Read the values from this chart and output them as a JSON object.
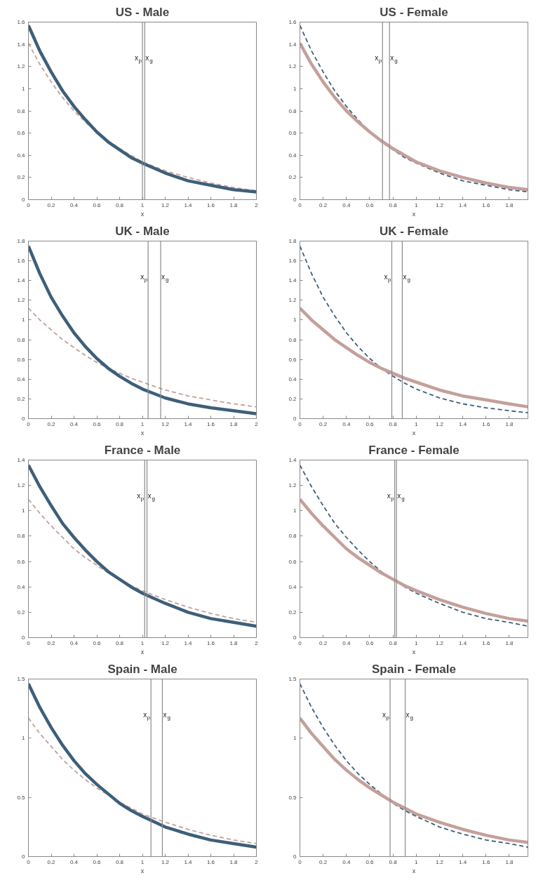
{
  "chart_data": [
    {
      "type": "line",
      "title": "US - Male",
      "xlabel": "x",
      "x": [
        0,
        0.1,
        0.2,
        0.3,
        0.4,
        0.5,
        0.6,
        0.7,
        0.8,
        0.9,
        1.0,
        1.2,
        1.4,
        1.6,
        1.8,
        2.0
      ],
      "xlim": [
        0,
        2
      ],
      "xticks": [
        0,
        0.2,
        0.4,
        0.6,
        0.8,
        1,
        1.2,
        1.4,
        1.6,
        1.8,
        2
      ],
      "ylim": [
        0,
        1.6
      ],
      "yticks": [
        0,
        0.2,
        0.4,
        0.6,
        0.8,
        1,
        1.2,
        1.4,
        1.6
      ],
      "grid": false,
      "series": [
        {
          "color": "#3d5f7a",
          "line_style": "solid",
          "values": [
            1.57,
            1.34,
            1.15,
            0.98,
            0.84,
            0.72,
            0.61,
            0.52,
            0.45,
            0.38,
            0.33,
            0.24,
            0.17,
            0.13,
            0.09,
            0.07
          ]
        },
        {
          "color": "#c4a09a",
          "line_style": "dashed",
          "values": [
            1.41,
            1.22,
            1.06,
            0.92,
            0.8,
            0.7,
            0.61,
            0.53,
            0.46,
            0.4,
            0.34,
            0.26,
            0.2,
            0.15,
            0.11,
            0.08
          ]
        }
      ],
      "ref_lines": [
        {
          "axis": "x",
          "value": 1.0,
          "label": "x$_{p}$"
        },
        {
          "axis": "x",
          "value": 1.02,
          "label": "x$_{g}$"
        }
      ]
    },
    {
      "type": "line",
      "title": "US - Female",
      "xlabel": "x",
      "x": [
        0,
        0.1,
        0.2,
        0.3,
        0.4,
        0.5,
        0.6,
        0.7,
        0.8,
        0.9,
        1.0,
        1.2,
        1.4,
        1.6,
        1.8,
        1.96
      ],
      "xlim": [
        0,
        1.96
      ],
      "xticks": [
        0,
        0.2,
        0.4,
        0.6,
        0.8,
        1,
        1.2,
        1.4,
        1.6,
        1.8
      ],
      "ylim": [
        0,
        1.6
      ],
      "yticks": [
        0,
        0.2,
        0.4,
        0.6,
        0.8,
        1,
        1.2,
        1.4,
        1.6
      ],
      "grid": false,
      "series": [
        {
          "color": "#c4a09a",
          "line_style": "solid",
          "values": [
            1.41,
            1.22,
            1.06,
            0.92,
            0.8,
            0.7,
            0.61,
            0.53,
            0.46,
            0.4,
            0.34,
            0.26,
            0.2,
            0.15,
            0.11,
            0.09
          ]
        },
        {
          "color": "#3d5f7a",
          "line_style": "dashed",
          "values": [
            1.57,
            1.34,
            1.15,
            0.98,
            0.84,
            0.72,
            0.61,
            0.52,
            0.45,
            0.38,
            0.33,
            0.24,
            0.17,
            0.13,
            0.09,
            0.07
          ]
        }
      ],
      "ref_lines": [
        {
          "axis": "x",
          "value": 0.71,
          "label": "x$_{p}$"
        },
        {
          "axis": "x",
          "value": 0.77,
          "label": "x$_{g}$"
        }
      ]
    },
    {
      "type": "line",
      "title": "UK - Male",
      "xlabel": "x",
      "x": [
        0,
        0.1,
        0.2,
        0.3,
        0.4,
        0.5,
        0.6,
        0.7,
        0.8,
        0.9,
        1.0,
        1.2,
        1.4,
        1.6,
        1.8,
        2.0
      ],
      "xlim": [
        0,
        2
      ],
      "xticks": [
        0,
        0.2,
        0.4,
        0.6,
        0.8,
        1,
        1.2,
        1.4,
        1.6,
        1.8,
        2
      ],
      "ylim": [
        0,
        1.8
      ],
      "yticks": [
        0,
        0.2,
        0.4,
        0.6,
        0.8,
        1,
        1.2,
        1.4,
        1.6,
        1.8
      ],
      "grid": false,
      "series": [
        {
          "color": "#3d5f7a",
          "line_style": "solid",
          "values": [
            1.75,
            1.47,
            1.23,
            1.04,
            0.87,
            0.73,
            0.61,
            0.51,
            0.43,
            0.36,
            0.3,
            0.21,
            0.15,
            0.11,
            0.08,
            0.05
          ]
        },
        {
          "color": "#c4a09a",
          "line_style": "dashed",
          "values": [
            1.12,
            1.0,
            0.9,
            0.8,
            0.72,
            0.64,
            0.57,
            0.51,
            0.46,
            0.41,
            0.37,
            0.29,
            0.23,
            0.19,
            0.15,
            0.12
          ]
        }
      ],
      "ref_lines": [
        {
          "axis": "x",
          "value": 1.05,
          "label": "x$_{p}$"
        },
        {
          "axis": "x",
          "value": 1.16,
          "label": "x$_{g}$"
        }
      ]
    },
    {
      "type": "line",
      "title": "UK - Female",
      "xlabel": "x",
      "x": [
        0,
        0.1,
        0.2,
        0.3,
        0.4,
        0.5,
        0.6,
        0.7,
        0.8,
        0.9,
        1.0,
        1.2,
        1.4,
        1.6,
        1.8,
        1.96
      ],
      "xlim": [
        0,
        1.96
      ],
      "xticks": [
        0,
        0.2,
        0.4,
        0.6,
        0.8,
        1,
        1.2,
        1.4,
        1.6,
        1.8
      ],
      "ylim": [
        0,
        1.8
      ],
      "yticks": [
        0,
        0.2,
        0.4,
        0.6,
        0.8,
        1,
        1.2,
        1.4,
        1.6,
        1.8
      ],
      "grid": false,
      "series": [
        {
          "color": "#c4a09a",
          "line_style": "solid",
          "values": [
            1.12,
            1.0,
            0.9,
            0.8,
            0.72,
            0.64,
            0.57,
            0.51,
            0.46,
            0.41,
            0.37,
            0.29,
            0.23,
            0.19,
            0.15,
            0.12
          ]
        },
        {
          "color": "#3d5f7a",
          "line_style": "dashed",
          "values": [
            1.75,
            1.47,
            1.23,
            1.04,
            0.87,
            0.73,
            0.61,
            0.51,
            0.43,
            0.36,
            0.3,
            0.21,
            0.15,
            0.11,
            0.08,
            0.06
          ]
        }
      ],
      "ref_lines": [
        {
          "axis": "x",
          "value": 0.79,
          "label": "x$_{p}$"
        },
        {
          "axis": "x",
          "value": 0.88,
          "label": "x$_{g}$"
        }
      ]
    },
    {
      "type": "line",
      "title": "France - Male",
      "xlabel": "x",
      "x": [
        0,
        0.1,
        0.2,
        0.3,
        0.4,
        0.5,
        0.6,
        0.7,
        0.8,
        0.9,
        1.0,
        1.2,
        1.4,
        1.6,
        1.8,
        2.0
      ],
      "xlim": [
        0,
        2
      ],
      "xticks": [
        0,
        0.2,
        0.4,
        0.6,
        0.8,
        1,
        1.2,
        1.4,
        1.6,
        1.8,
        2
      ],
      "ylim": [
        0,
        1.4
      ],
      "yticks": [
        0,
        0.2,
        0.4,
        0.6,
        0.8,
        1,
        1.2,
        1.4
      ],
      "grid": false,
      "series": [
        {
          "color": "#3d5f7a",
          "line_style": "solid",
          "values": [
            1.36,
            1.19,
            1.04,
            0.9,
            0.79,
            0.69,
            0.6,
            0.52,
            0.46,
            0.4,
            0.35,
            0.27,
            0.2,
            0.15,
            0.12,
            0.09
          ]
        },
        {
          "color": "#c4a09a",
          "line_style": "dashed",
          "values": [
            1.09,
            0.98,
            0.88,
            0.79,
            0.7,
            0.63,
            0.57,
            0.51,
            0.46,
            0.41,
            0.37,
            0.3,
            0.24,
            0.19,
            0.15,
            0.12
          ]
        }
      ],
      "ref_lines": [
        {
          "axis": "x",
          "value": 1.02,
          "label": "x$_{p}$"
        },
        {
          "axis": "x",
          "value": 1.04,
          "label": "x$_{g}$"
        }
      ]
    },
    {
      "type": "line",
      "title": "France - Female",
      "xlabel": "x",
      "x": [
        0,
        0.1,
        0.2,
        0.3,
        0.4,
        0.5,
        0.6,
        0.7,
        0.8,
        0.9,
        1.0,
        1.2,
        1.4,
        1.6,
        1.8,
        1.96
      ],
      "xlim": [
        0,
        1.96
      ],
      "xticks": [
        0,
        0.2,
        0.4,
        0.6,
        0.8,
        1,
        1.2,
        1.4,
        1.6,
        1.8
      ],
      "ylim": [
        0,
        1.4
      ],
      "yticks": [
        0,
        0.2,
        0.4,
        0.6,
        0.8,
        1,
        1.2,
        1.4
      ],
      "grid": false,
      "series": [
        {
          "color": "#c4a09a",
          "line_style": "solid",
          "values": [
            1.09,
            0.98,
            0.88,
            0.79,
            0.7,
            0.63,
            0.57,
            0.51,
            0.46,
            0.41,
            0.37,
            0.3,
            0.24,
            0.19,
            0.15,
            0.13
          ]
        },
        {
          "color": "#3d5f7a",
          "line_style": "dashed",
          "values": [
            1.36,
            1.19,
            1.04,
            0.9,
            0.79,
            0.69,
            0.6,
            0.52,
            0.46,
            0.4,
            0.35,
            0.27,
            0.2,
            0.15,
            0.12,
            0.09
          ]
        }
      ],
      "ref_lines": [
        {
          "axis": "x",
          "value": 0.815,
          "label": "x$_{p}$"
        },
        {
          "axis": "x",
          "value": 0.83,
          "label": "x$_{g}$"
        }
      ]
    },
    {
      "type": "line",
      "title": "Spain - Male",
      "xlabel": "x",
      "x": [
        0,
        0.1,
        0.2,
        0.3,
        0.4,
        0.5,
        0.6,
        0.7,
        0.8,
        0.9,
        1.0,
        1.2,
        1.4,
        1.6,
        1.8,
        2.0
      ],
      "xlim": [
        0,
        2
      ],
      "xticks": [
        0,
        0.2,
        0.4,
        0.6,
        0.8,
        1,
        1.2,
        1.4,
        1.6,
        1.8,
        2
      ],
      "ylim": [
        0,
        1.5
      ],
      "yticks": [
        0,
        0.5,
        1,
        1.5
      ],
      "grid": false,
      "series": [
        {
          "color": "#3d5f7a",
          "line_style": "solid",
          "values": [
            1.46,
            1.26,
            1.09,
            0.94,
            0.81,
            0.7,
            0.61,
            0.53,
            0.45,
            0.39,
            0.34,
            0.25,
            0.19,
            0.14,
            0.11,
            0.08
          ]
        },
        {
          "color": "#c4a09a",
          "line_style": "dashed",
          "values": [
            1.17,
            1.04,
            0.93,
            0.82,
            0.73,
            0.65,
            0.58,
            0.52,
            0.46,
            0.41,
            0.36,
            0.29,
            0.23,
            0.18,
            0.14,
            0.11
          ]
        }
      ],
      "ref_lines": [
        {
          "axis": "x",
          "value": 1.075,
          "label": "x$_{p}$"
        },
        {
          "axis": "x",
          "value": 1.175,
          "label": "x$_{g}$"
        }
      ]
    },
    {
      "type": "line",
      "title": "Spain - Female",
      "xlabel": "x",
      "x": [
        0,
        0.1,
        0.2,
        0.3,
        0.4,
        0.5,
        0.6,
        0.7,
        0.8,
        0.9,
        1.0,
        1.2,
        1.4,
        1.6,
        1.8,
        1.96
      ],
      "xlim": [
        0,
        1.96
      ],
      "xticks": [
        0,
        0.2,
        0.4,
        0.6,
        0.8,
        1,
        1.2,
        1.4,
        1.6,
        1.8
      ],
      "ylim": [
        0,
        1.5
      ],
      "yticks": [
        0,
        0.5,
        1,
        1.5
      ],
      "grid": false,
      "series": [
        {
          "color": "#c4a09a",
          "line_style": "solid",
          "values": [
            1.17,
            1.04,
            0.93,
            0.82,
            0.73,
            0.65,
            0.58,
            0.52,
            0.46,
            0.41,
            0.36,
            0.29,
            0.23,
            0.18,
            0.14,
            0.12
          ]
        },
        {
          "color": "#3d5f7a",
          "line_style": "dashed",
          "values": [
            1.46,
            1.26,
            1.09,
            0.94,
            0.81,
            0.7,
            0.61,
            0.53,
            0.45,
            0.39,
            0.34,
            0.25,
            0.19,
            0.14,
            0.11,
            0.08
          ]
        }
      ],
      "ref_lines": [
        {
          "axis": "x",
          "value": 0.775,
          "label": "x$_{p}$"
        },
        {
          "axis": "x",
          "value": 0.905,
          "label": "x$_{g}$"
        }
      ]
    }
  ]
}
